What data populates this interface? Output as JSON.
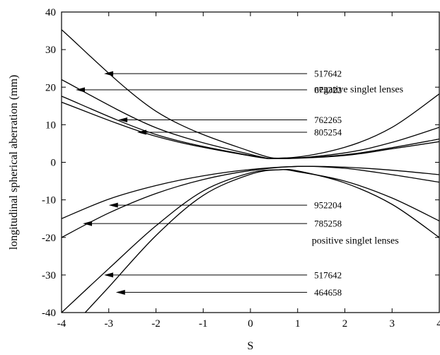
{
  "chart_data": {
    "type": "line",
    "title": "",
    "xlabel": "S",
    "ylabel": "longitudinal spherical aberration (mm)",
    "xlim": [
      -4,
      4
    ],
    "ylim": [
      -40,
      40
    ],
    "xticks": [
      -4,
      -3,
      -2,
      -1,
      0,
      1,
      2,
      3,
      4
    ],
    "yticks": [
      40,
      30,
      20,
      10,
      0,
      -10,
      -20,
      -30,
      -40
    ],
    "grid": false,
    "legend": "none",
    "line_color": "#000000",
    "annotations": [
      {
        "text": "negative singlet lenses",
        "x": 1.35,
        "y": 18.6
      },
      {
        "text": "positive singlet lenses",
        "x": 1.3,
        "y": -21.6
      }
    ],
    "series": [
      {
        "group": "negative",
        "label": "517642",
        "x": [
          -4,
          -2,
          0,
          0.8,
          2,
          3,
          4
        ],
        "y": [
          35.3,
          13.6,
          2.9,
          1.2,
          4.0,
          9.3,
          18.2
        ],
        "label_pos": [
          1.35,
          23.6
        ],
        "arrow_tip": [
          -3.1,
          23.6
        ]
      },
      {
        "group": "negative",
        "label": "673322",
        "x": [
          -4,
          -2,
          0,
          0.7,
          2,
          3,
          4
        ],
        "y": [
          22.0,
          9.2,
          2.1,
          1.0,
          2.5,
          5.3,
          9.3
        ],
        "label_pos": [
          1.35,
          19.3
        ],
        "arrow_tip": [
          -3.7,
          19.3
        ]
      },
      {
        "group": "negative",
        "label": "762265",
        "x": [
          -4,
          -2,
          0,
          0.7,
          2,
          3,
          4
        ],
        "y": [
          17.6,
          7.4,
          1.8,
          1.0,
          2.0,
          3.9,
          6.2
        ],
        "label_pos": [
          1.35,
          11.3
        ],
        "arrow_tip": [
          -2.8,
          11.3
        ]
      },
      {
        "group": "negative",
        "label": "805254",
        "x": [
          -4,
          -2,
          0,
          0.7,
          2,
          3,
          4
        ],
        "y": [
          16.0,
          6.9,
          1.7,
          1.0,
          1.8,
          3.6,
          5.5
        ],
        "label_pos": [
          1.35,
          8.0
        ],
        "arrow_tip": [
          -2.4,
          8.0
        ]
      },
      {
        "group": "positive",
        "label": "952204",
        "x": [
          -4,
          -3,
          -2,
          -1,
          0,
          1,
          2,
          3,
          4
        ],
        "y": [
          -15.0,
          -9.8,
          -6.2,
          -3.6,
          -1.9,
          -1.1,
          -1.3,
          -2.1,
          -3.3
        ],
        "label_pos": [
          1.35,
          -11.4
        ],
        "arrow_tip": [
          -3.0,
          -11.4
        ]
      },
      {
        "group": "positive",
        "label": "785258",
        "x": [
          -4,
          -3,
          -2,
          -1,
          0,
          1,
          2,
          3,
          4
        ],
        "y": [
          -20.0,
          -13.5,
          -8.3,
          -4.6,
          -2.2,
          -1.1,
          -1.6,
          -3.3,
          -5.3
        ],
        "label_pos": [
          1.35,
          -16.3
        ],
        "arrow_tip": [
          -3.55,
          -16.3
        ]
      },
      {
        "group": "positive",
        "label": "517642",
        "x": [
          -4,
          -3,
          -2,
          -1,
          0,
          0.6,
          1,
          2,
          3,
          4
        ],
        "y": [
          -40.0,
          -28.3,
          -16.9,
          -7.6,
          -2.8,
          -2.0,
          -2.3,
          -5.5,
          -11.2,
          -20.0
        ],
        "label_pos": [
          1.35,
          -30.0
        ],
        "arrow_tip": [
          -3.1,
          -30.0
        ]
      },
      {
        "group": "positive",
        "label": "464658",
        "x": [
          -3.5,
          -3,
          -2,
          -1,
          0,
          0.6,
          1,
          2,
          3,
          4
        ],
        "y": [
          -40.0,
          -33.2,
          -19.5,
          -8.8,
          -3.2,
          -2.0,
          -2.5,
          -5.0,
          -9.5,
          -15.6
        ],
        "label_pos": [
          1.35,
          -34.6
        ],
        "arrow_tip": [
          -2.85,
          -34.6
        ]
      }
    ]
  }
}
